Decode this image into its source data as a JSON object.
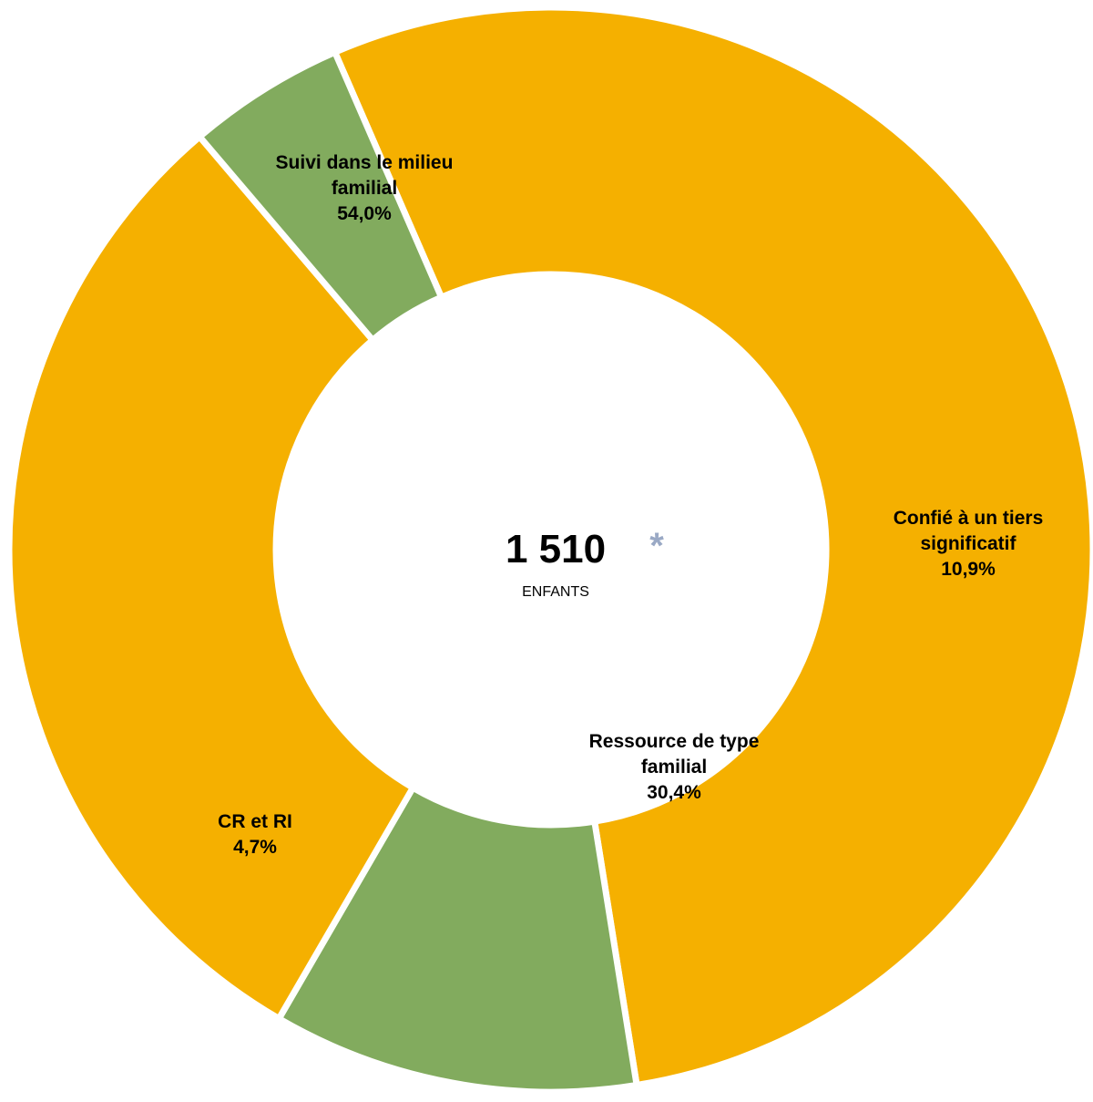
{
  "chart_data": {
    "type": "pie",
    "donut": true,
    "center": {
      "total": "1 510",
      "unit": "ENFANTS",
      "mark": "*"
    },
    "colors": {
      "orange": "#F5B000",
      "green": "#82AB5E",
      "mark": "#9AA9C5",
      "separator": "#FFFFFF"
    },
    "slices": [
      {
        "lines": [
          "Suivi dans le milieu",
          "familial",
          "54,0%"
        ],
        "value": 54.0,
        "color": "orange"
      },
      {
        "lines": [
          "Confié à un tiers",
          "significatif",
          "10,9%"
        ],
        "value": 10.9,
        "color": "green"
      },
      {
        "lines": [
          "Ressource de type",
          "familial",
          "30,4%"
        ],
        "value": 30.4,
        "color": "orange"
      },
      {
        "lines": [
          "CR et RI",
          "4,7%"
        ],
        "value": 4.7,
        "color": "green"
      }
    ]
  }
}
